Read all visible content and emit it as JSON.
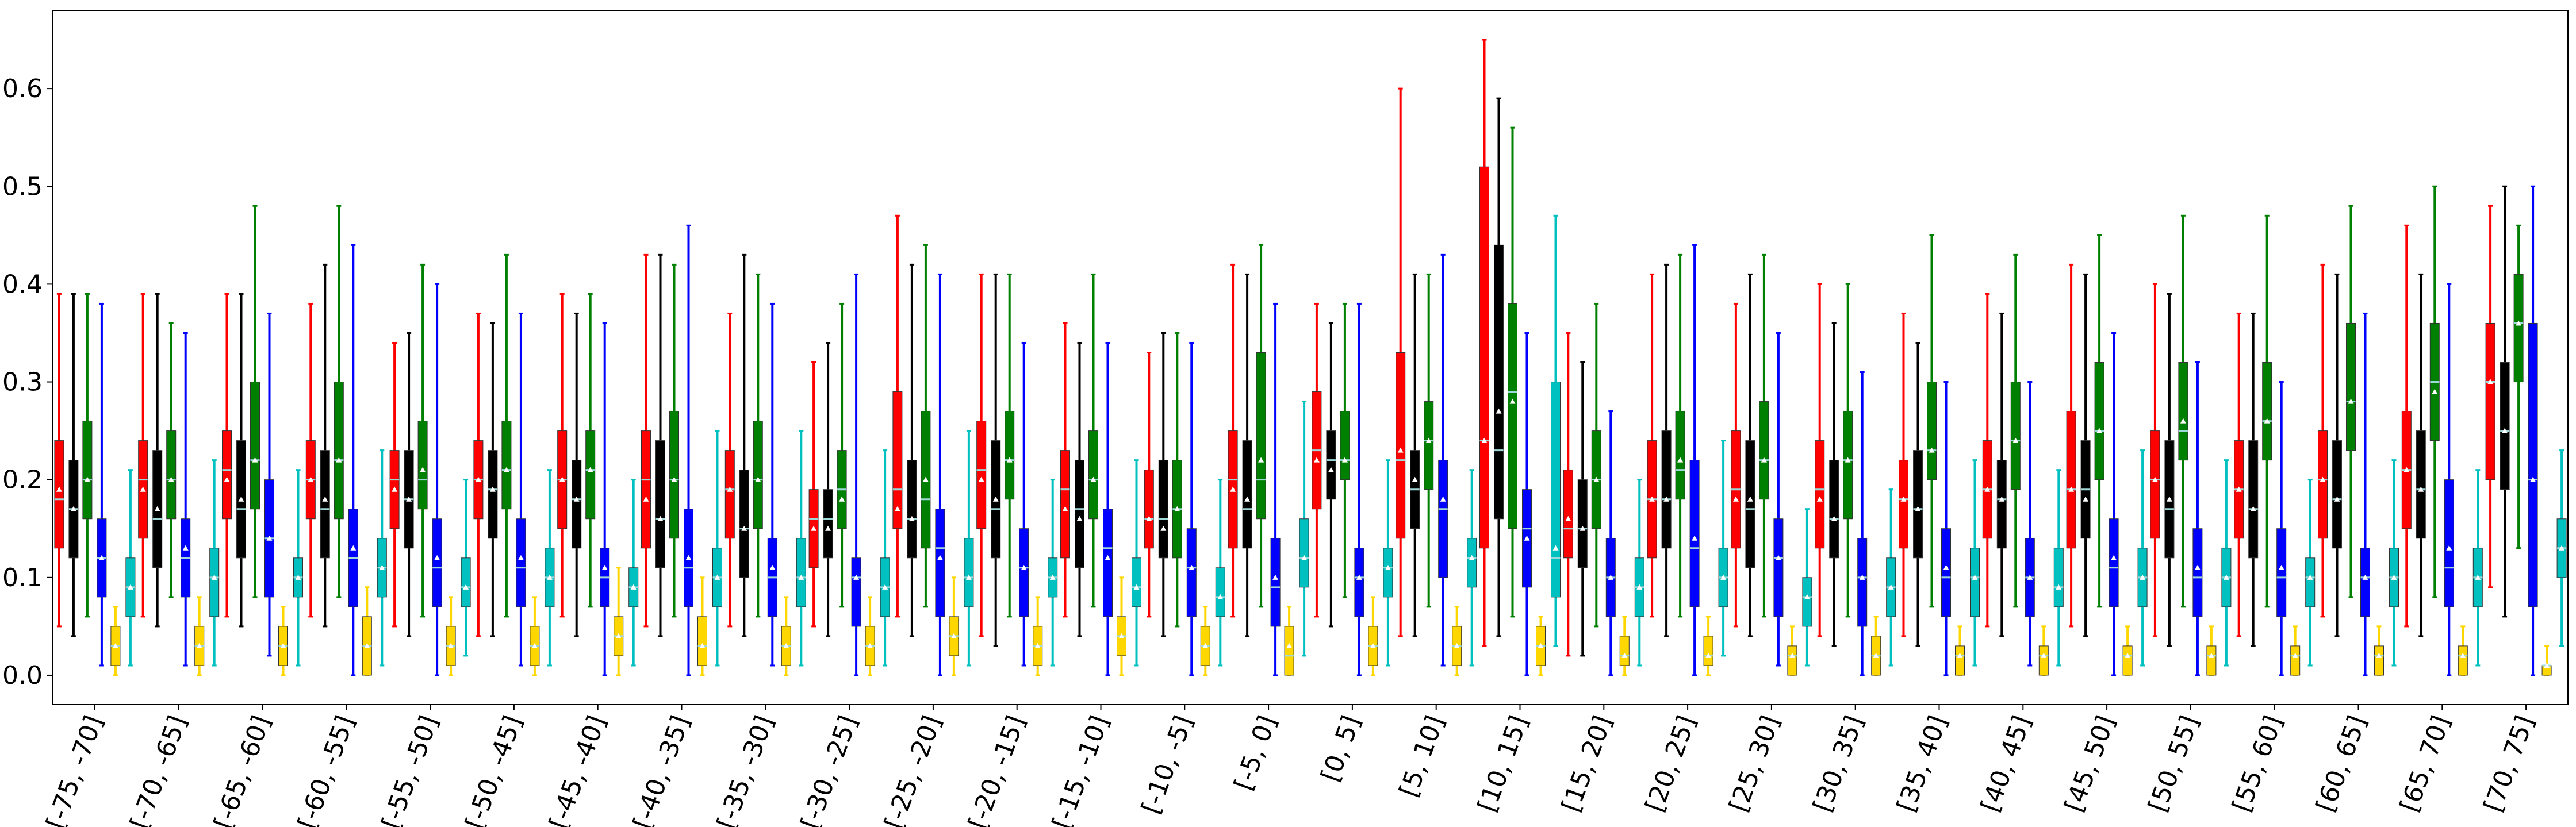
{
  "chart_data": {
    "type": "box",
    "categories": [
      "[-75, -70]",
      "[-70, -65]",
      "[-65, -60]",
      "[-60, -55]",
      "[-55, -50]",
      "[-50, -45]",
      "[-45, -40]",
      "[-40, -35]",
      "[-35, -30]",
      "[-30, -25]",
      "[-25, -20]",
      "[-20, -15]",
      "[-15, -10]",
      "[-10, -5]",
      "[-5, 0]",
      "[0, 5]",
      "[5, 10]",
      "[10, 15]",
      "[15, 20]",
      "[20, 25]",
      "[25, 30]",
      "[30, 35]",
      "[35, 40]",
      "[40, 45]",
      "[45, 50]",
      "[50, 55]",
      "[55, 60]",
      "[60, 65]",
      "[65, 70]",
      "[70, 75]"
    ],
    "yticks": [
      "0.0",
      "0.1",
      "0.2",
      "0.3",
      "0.4",
      "0.5",
      "0.6"
    ],
    "ylim": [
      -0.03,
      0.68
    ],
    "grid": false,
    "colors": [
      "#ff0000",
      "#000000",
      "#008000",
      "#0000ff",
      "#ffd700",
      "#00c0c0"
    ],
    "series": [
      {
        "color": "#ff0000",
        "min": [
          0.05,
          0.06,
          0.06,
          0.06,
          0.05,
          0.04,
          0.06,
          0.05,
          0.05,
          0.05,
          0.06,
          0.04,
          0.06,
          0.06,
          0.06,
          0.06,
          0.04,
          0.03,
          0.02,
          0.06,
          0.05,
          0.04,
          0.04,
          0.05,
          0.05,
          0.04,
          0.04,
          0.06,
          0.05,
          0.09
        ],
        "q1": [
          0.13,
          0.14,
          0.16,
          0.16,
          0.15,
          0.16,
          0.15,
          0.13,
          0.14,
          0.11,
          0.15,
          0.15,
          0.12,
          0.13,
          0.13,
          0.17,
          0.14,
          0.13,
          0.12,
          0.12,
          0.13,
          0.13,
          0.13,
          0.14,
          0.13,
          0.14,
          0.14,
          0.14,
          0.15,
          0.2
        ],
        "median": [
          0.18,
          0.2,
          0.21,
          0.2,
          0.2,
          0.2,
          0.2,
          0.2,
          0.19,
          0.16,
          0.19,
          0.21,
          0.19,
          0.16,
          0.2,
          0.23,
          0.22,
          0.24,
          0.15,
          0.18,
          0.19,
          0.19,
          0.18,
          0.19,
          0.19,
          0.2,
          0.19,
          0.2,
          0.21,
          0.3
        ],
        "q3": [
          0.24,
          0.24,
          0.25,
          0.24,
          0.23,
          0.24,
          0.25,
          0.25,
          0.23,
          0.19,
          0.29,
          0.26,
          0.23,
          0.21,
          0.25,
          0.29,
          0.33,
          0.52,
          0.21,
          0.24,
          0.25,
          0.24,
          0.22,
          0.24,
          0.27,
          0.25,
          0.24,
          0.25,
          0.27,
          0.36
        ],
        "max": [
          0.39,
          0.39,
          0.39,
          0.38,
          0.34,
          0.37,
          0.39,
          0.43,
          0.37,
          0.32,
          0.47,
          0.41,
          0.36,
          0.33,
          0.42,
          0.38,
          0.6,
          0.65,
          0.35,
          0.41,
          0.38,
          0.4,
          0.37,
          0.39,
          0.42,
          0.4,
          0.37,
          0.42,
          0.46,
          0.48
        ],
        "mean": [
          0.19,
          0.19,
          0.2,
          0.2,
          0.19,
          0.2,
          0.2,
          0.18,
          0.19,
          0.15,
          0.17,
          0.2,
          0.17,
          0.16,
          0.19,
          0.22,
          0.23,
          0.24,
          0.16,
          0.18,
          0.18,
          0.18,
          0.18,
          0.19,
          0.19,
          0.2,
          0.19,
          0.2,
          0.21,
          0.3
        ]
      },
      {
        "color": "#000000",
        "min": [
          0.04,
          0.05,
          0.05,
          0.05,
          0.04,
          0.04,
          0.04,
          0.04,
          0.04,
          0.04,
          0.04,
          0.03,
          0.04,
          0.04,
          0.04,
          0.05,
          0.04,
          0.04,
          0.02,
          0.04,
          0.04,
          0.03,
          0.03,
          0.04,
          0.04,
          0.03,
          0.03,
          0.04,
          0.04,
          0.06
        ],
        "q1": [
          0.12,
          0.11,
          0.12,
          0.12,
          0.13,
          0.14,
          0.13,
          0.11,
          0.1,
          0.12,
          0.12,
          0.12,
          0.11,
          0.12,
          0.13,
          0.18,
          0.15,
          0.16,
          0.11,
          0.13,
          0.11,
          0.12,
          0.12,
          0.13,
          0.14,
          0.12,
          0.12,
          0.13,
          0.14,
          0.19
        ],
        "median": [
          0.17,
          0.16,
          0.17,
          0.17,
          0.18,
          0.19,
          0.18,
          0.16,
          0.15,
          0.16,
          0.16,
          0.17,
          0.17,
          0.16,
          0.17,
          0.22,
          0.19,
          0.23,
          0.15,
          0.18,
          0.17,
          0.16,
          0.17,
          0.18,
          0.19,
          0.17,
          0.17,
          0.18,
          0.19,
          0.25
        ],
        "q3": [
          0.22,
          0.23,
          0.24,
          0.23,
          0.23,
          0.23,
          0.22,
          0.24,
          0.21,
          0.19,
          0.22,
          0.24,
          0.22,
          0.22,
          0.24,
          0.25,
          0.23,
          0.44,
          0.2,
          0.25,
          0.24,
          0.22,
          0.23,
          0.22,
          0.24,
          0.24,
          0.24,
          0.24,
          0.25,
          0.32
        ],
        "max": [
          0.39,
          0.39,
          0.39,
          0.42,
          0.35,
          0.36,
          0.37,
          0.43,
          0.43,
          0.34,
          0.42,
          0.41,
          0.34,
          0.35,
          0.41,
          0.36,
          0.41,
          0.59,
          0.32,
          0.42,
          0.41,
          0.36,
          0.34,
          0.37,
          0.41,
          0.39,
          0.37,
          0.41,
          0.41,
          0.5
        ],
        "mean": [
          0.17,
          0.17,
          0.18,
          0.18,
          0.18,
          0.19,
          0.18,
          0.16,
          0.15,
          0.15,
          0.16,
          0.18,
          0.16,
          0.15,
          0.18,
          0.21,
          0.2,
          0.27,
          0.15,
          0.18,
          0.18,
          0.16,
          0.17,
          0.18,
          0.18,
          0.18,
          0.17,
          0.18,
          0.19,
          0.25
        ]
      },
      {
        "color": "#008000",
        "min": [
          0.06,
          0.08,
          0.08,
          0.08,
          0.06,
          0.06,
          0.07,
          0.06,
          0.06,
          0.07,
          0.07,
          0.06,
          0.07,
          0.05,
          0.07,
          0.08,
          0.07,
          0.06,
          0.05,
          0.06,
          0.06,
          0.06,
          0.07,
          0.07,
          0.07,
          0.07,
          0.07,
          0.08,
          0.08,
          0.13
        ],
        "q1": [
          0.16,
          0.16,
          0.17,
          0.16,
          0.17,
          0.17,
          0.16,
          0.14,
          0.15,
          0.15,
          0.13,
          0.18,
          0.16,
          0.12,
          0.16,
          0.2,
          0.19,
          0.15,
          0.15,
          0.18,
          0.18,
          0.16,
          0.2,
          0.19,
          0.2,
          0.22,
          0.22,
          0.23,
          0.24,
          0.3
        ],
        "median": [
          0.2,
          0.2,
          0.22,
          0.22,
          0.2,
          0.21,
          0.21,
          0.2,
          0.2,
          0.19,
          0.18,
          0.22,
          0.2,
          0.17,
          0.2,
          0.22,
          0.24,
          0.29,
          0.2,
          0.21,
          0.22,
          0.22,
          0.23,
          0.24,
          0.25,
          0.25,
          0.26,
          0.28,
          0.3,
          0.36
        ],
        "q3": [
          0.26,
          0.25,
          0.3,
          0.3,
          0.26,
          0.26,
          0.25,
          0.27,
          0.26,
          0.23,
          0.27,
          0.27,
          0.25,
          0.22,
          0.33,
          0.27,
          0.28,
          0.38,
          0.25,
          0.27,
          0.28,
          0.27,
          0.3,
          0.3,
          0.32,
          0.32,
          0.32,
          0.36,
          0.36,
          0.41
        ],
        "max": [
          0.39,
          0.36,
          0.48,
          0.48,
          0.42,
          0.43,
          0.39,
          0.42,
          0.41,
          0.38,
          0.44,
          0.41,
          0.41,
          0.35,
          0.44,
          0.38,
          0.41,
          0.56,
          0.38,
          0.43,
          0.43,
          0.4,
          0.45,
          0.43,
          0.45,
          0.47,
          0.47,
          0.48,
          0.5,
          0.46
        ],
        "mean": [
          0.2,
          0.2,
          0.22,
          0.22,
          0.21,
          0.21,
          0.21,
          0.2,
          0.2,
          0.18,
          0.2,
          0.22,
          0.2,
          0.17,
          0.22,
          0.22,
          0.24,
          0.28,
          0.2,
          0.22,
          0.22,
          0.22,
          0.23,
          0.24,
          0.25,
          0.26,
          0.26,
          0.28,
          0.29,
          0.36
        ]
      },
      {
        "color": "#0000ff",
        "min": [
          0.01,
          0.01,
          0.02,
          0.0,
          0.0,
          0.01,
          0.0,
          0.0,
          0.01,
          0.0,
          0.0,
          0.01,
          0.0,
          0.0,
          0.0,
          0.0,
          0.01,
          0.0,
          0.0,
          0.0,
          0.01,
          0.0,
          0.0,
          0.01,
          0.0,
          0.0,
          0.0,
          0.0,
          0.0,
          0.0
        ],
        "q1": [
          0.08,
          0.08,
          0.08,
          0.07,
          0.07,
          0.07,
          0.07,
          0.07,
          0.06,
          0.05,
          0.06,
          0.06,
          0.06,
          0.06,
          0.05,
          0.06,
          0.1,
          0.09,
          0.06,
          0.07,
          0.06,
          0.05,
          0.06,
          0.06,
          0.07,
          0.06,
          0.06,
          0.06,
          0.07,
          0.07
        ],
        "median": [
          0.12,
          0.12,
          0.14,
          0.12,
          0.11,
          0.11,
          0.1,
          0.11,
          0.1,
          0.1,
          0.13,
          0.11,
          0.13,
          0.11,
          0.09,
          0.1,
          0.17,
          0.15,
          0.1,
          0.13,
          0.12,
          0.1,
          0.1,
          0.1,
          0.11,
          0.1,
          0.1,
          0.1,
          0.11,
          0.2
        ],
        "q3": [
          0.16,
          0.16,
          0.2,
          0.17,
          0.16,
          0.16,
          0.13,
          0.17,
          0.14,
          0.12,
          0.17,
          0.15,
          0.17,
          0.15,
          0.14,
          0.13,
          0.22,
          0.19,
          0.14,
          0.22,
          0.16,
          0.14,
          0.15,
          0.14,
          0.16,
          0.15,
          0.15,
          0.13,
          0.2,
          0.36
        ],
        "max": [
          0.38,
          0.35,
          0.37,
          0.44,
          0.4,
          0.37,
          0.36,
          0.46,
          0.38,
          0.41,
          0.41,
          0.34,
          0.34,
          0.34,
          0.38,
          0.38,
          0.43,
          0.35,
          0.27,
          0.44,
          0.35,
          0.31,
          0.3,
          0.3,
          0.35,
          0.32,
          0.3,
          0.37,
          0.4,
          0.5
        ],
        "mean": [
          0.12,
          0.13,
          0.14,
          0.13,
          0.12,
          0.12,
          0.11,
          0.12,
          0.11,
          0.1,
          0.12,
          0.11,
          0.12,
          0.11,
          0.1,
          0.1,
          0.18,
          0.14,
          0.1,
          0.14,
          0.12,
          0.1,
          0.11,
          0.1,
          0.12,
          0.11,
          0.11,
          0.1,
          0.13,
          0.2
        ]
      },
      {
        "color": "#ffd700",
        "min": [
          0.0,
          0.0,
          0.0,
          0.0,
          0.0,
          0.0,
          0.0,
          0.0,
          0.0,
          0.0,
          0.0,
          0.0,
          0.0,
          0.0,
          0.0,
          0.0,
          0.0,
          0.0,
          0.0,
          0.0,
          0.0,
          0.0,
          0.0,
          0.0,
          0.0,
          0.0,
          0.0,
          0.0,
          0.0,
          0.0
        ],
        "q1": [
          0.01,
          0.01,
          0.01,
          0.0,
          0.01,
          0.01,
          0.02,
          0.01,
          0.01,
          0.01,
          0.02,
          0.01,
          0.02,
          0.01,
          0.0,
          0.01,
          0.01,
          0.01,
          0.01,
          0.01,
          0.0,
          0.0,
          0.0,
          0.0,
          0.0,
          0.0,
          0.0,
          0.0,
          0.0,
          0.0
        ],
        "median": [
          0.03,
          0.03,
          0.03,
          0.03,
          0.03,
          0.03,
          0.04,
          0.03,
          0.03,
          0.03,
          0.04,
          0.03,
          0.04,
          0.03,
          0.02,
          0.03,
          0.03,
          0.03,
          0.02,
          0.02,
          0.02,
          0.02,
          0.02,
          0.02,
          0.02,
          0.02,
          0.02,
          0.02,
          0.02,
          0.01
        ],
        "q3": [
          0.05,
          0.05,
          0.05,
          0.06,
          0.05,
          0.05,
          0.06,
          0.06,
          0.05,
          0.05,
          0.06,
          0.05,
          0.06,
          0.05,
          0.05,
          0.05,
          0.05,
          0.05,
          0.04,
          0.04,
          0.03,
          0.04,
          0.03,
          0.03,
          0.03,
          0.03,
          0.03,
          0.03,
          0.03,
          0.01
        ],
        "max": [
          0.07,
          0.08,
          0.07,
          0.09,
          0.08,
          0.08,
          0.11,
          0.1,
          0.08,
          0.08,
          0.1,
          0.08,
          0.1,
          0.07,
          0.07,
          0.08,
          0.07,
          0.06,
          0.06,
          0.06,
          0.05,
          0.06,
          0.05,
          0.05,
          0.05,
          0.05,
          0.05,
          0.05,
          0.05,
          0.03
        ],
        "mean": [
          0.03,
          0.03,
          0.03,
          0.03,
          0.03,
          0.03,
          0.04,
          0.03,
          0.03,
          0.03,
          0.04,
          0.03,
          0.04,
          0.03,
          0.03,
          0.03,
          0.03,
          0.03,
          0.02,
          0.02,
          0.02,
          0.02,
          0.02,
          0.02,
          0.02,
          0.02,
          0.02,
          0.02,
          0.02,
          0.01
        ]
      },
      {
        "color": "#00c0c0",
        "min": [
          0.01,
          0.01,
          0.01,
          0.01,
          0.02,
          0.01,
          0.01,
          0.01,
          0.01,
          0.01,
          0.01,
          0.01,
          0.01,
          0.01,
          0.02,
          0.01,
          0.01,
          0.03,
          0.01,
          0.02,
          0.01,
          0.01,
          0.01,
          0.01,
          0.01,
          0.01,
          0.01,
          0.01,
          0.01,
          0.03
        ],
        "q1": [
          0.06,
          0.06,
          0.08,
          0.08,
          0.07,
          0.07,
          0.07,
          0.07,
          0.07,
          0.06,
          0.07,
          0.08,
          0.07,
          0.06,
          0.09,
          0.08,
          0.09,
          0.08,
          0.06,
          0.07,
          0.05,
          0.06,
          0.06,
          0.07,
          0.07,
          0.07,
          0.07,
          0.07,
          0.07,
          0.1
        ],
        "median": [
          0.09,
          0.1,
          0.1,
          0.11,
          0.09,
          0.1,
          0.09,
          0.1,
          0.1,
          0.09,
          0.1,
          0.1,
          0.09,
          0.08,
          0.12,
          0.11,
          0.12,
          0.12,
          0.09,
          0.1,
          0.08,
          0.09,
          0.1,
          0.09,
          0.1,
          0.1,
          0.1,
          0.1,
          0.1,
          0.13
        ],
        "q3": [
          0.12,
          0.13,
          0.12,
          0.14,
          0.12,
          0.13,
          0.11,
          0.13,
          0.14,
          0.12,
          0.14,
          0.12,
          0.12,
          0.11,
          0.16,
          0.13,
          0.14,
          0.3,
          0.12,
          0.13,
          0.1,
          0.12,
          0.13,
          0.13,
          0.13,
          0.13,
          0.12,
          0.13,
          0.13,
          0.16
        ],
        "max": [
          0.21,
          0.22,
          0.21,
          0.23,
          0.2,
          0.21,
          0.2,
          0.25,
          0.25,
          0.23,
          0.25,
          0.2,
          0.22,
          0.2,
          0.28,
          0.22,
          0.21,
          0.47,
          0.2,
          0.24,
          0.17,
          0.19,
          0.22,
          0.21,
          0.23,
          0.22,
          0.2,
          0.22,
          0.21,
          0.23
        ],
        "mean": [
          0.09,
          0.1,
          0.1,
          0.11,
          0.09,
          0.1,
          0.09,
          0.1,
          0.1,
          0.09,
          0.1,
          0.1,
          0.09,
          0.08,
          0.12,
          0.11,
          0.12,
          0.13,
          0.09,
          0.1,
          0.08,
          0.09,
          0.1,
          0.09,
          0.1,
          0.1,
          0.1,
          0.1,
          0.1,
          0.13
        ]
      }
    ]
  }
}
